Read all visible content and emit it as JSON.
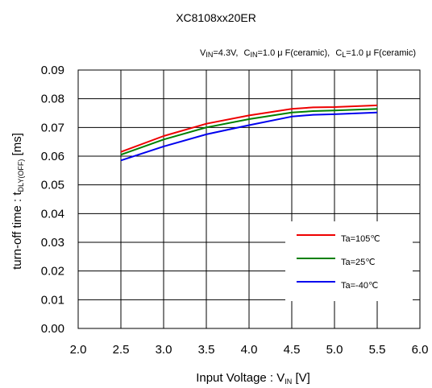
{
  "chart_data": {
    "type": "line",
    "title": "XC8108xx20ER",
    "conditions": {
      "vin": {
        "main": "V",
        "sub": "IN",
        "rest": "=4.3V,"
      },
      "cin": {
        "main": "C",
        "sub": "IN",
        "rest": "=1.0 μ F(ceramic),"
      },
      "cl": {
        "main": "C",
        "sub": "L",
        "rest": "=1.0 μ F(ceramic)"
      }
    },
    "xlabel": {
      "main": "Input Voltage : V",
      "sub": "IN",
      "rest": " [V]"
    },
    "ylabel": {
      "main": "turn-off time : t",
      "sub": "DLY(OFF)",
      "rest": " [ms]"
    },
    "xlim": [
      2.0,
      6.0
    ],
    "ylim": [
      0.0,
      0.09
    ],
    "xticks": [
      "2.0",
      "2.5",
      "3.0",
      "3.5",
      "4.0",
      "4.5",
      "5.0",
      "5.5",
      "6.0"
    ],
    "yticks": [
      "0.00",
      "0.01",
      "0.02",
      "0.03",
      "0.04",
      "0.05",
      "0.06",
      "0.07",
      "0.08",
      "0.09"
    ],
    "grid": true,
    "legend_position": "lower-right",
    "x": [
      2.5,
      3.0,
      3.5,
      4.0,
      4.5,
      4.75,
      5.0,
      5.5
    ],
    "series": [
      {
        "name": "Ta=105℃",
        "color": "#ee0000",
        "values": [
          0.0615,
          0.067,
          0.0713,
          0.0742,
          0.0765,
          0.077,
          0.0771,
          0.0777
        ]
      },
      {
        "name": "Ta=25℃",
        "color": "#008000",
        "values": [
          0.0605,
          0.0658,
          0.07,
          0.0729,
          0.0752,
          0.0757,
          0.0759,
          0.0765
        ]
      },
      {
        "name": "Ta=-40℃",
        "color": "#0000ee",
        "values": [
          0.0585,
          0.0634,
          0.0676,
          0.0708,
          0.0738,
          0.0744,
          0.0746,
          0.0752
        ]
      }
    ]
  }
}
